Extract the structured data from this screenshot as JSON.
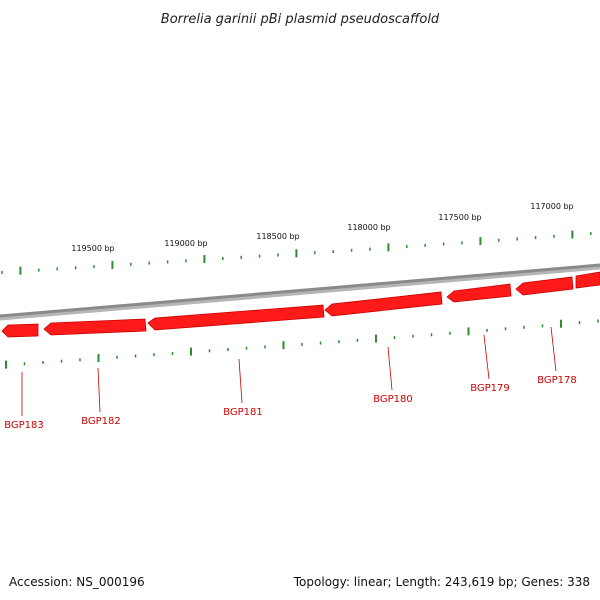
{
  "title": "Borrelia garinii pBi plasmid pseudoscaffold",
  "footer": {
    "accession": "Accession: NS_000196",
    "summary": "Topology: linear; Length: 243,619 bp; Genes: 338"
  },
  "colors": {
    "backbone": "#8a8a8a",
    "gene_fill": "#ff1a1a",
    "gene_dark": "#c80000",
    "gene_light": "#ff7a7a",
    "tick": "#2e8b2e",
    "label": "#cc0000",
    "leader": "#cc0000"
  },
  "scale": {
    "labels": [
      "119500 bp",
      "119000 bp",
      "118500 bp",
      "118000 bp",
      "117500 bp",
      "117000 bp"
    ]
  },
  "genes": [
    {
      "name": "BGP183",
      "strand": "reverse"
    },
    {
      "name": "BGP182",
      "strand": "reverse"
    },
    {
      "name": "BGP181",
      "strand": "reverse"
    },
    {
      "name": "BGP180",
      "strand": "reverse"
    },
    {
      "name": "BGP179",
      "strand": "reverse"
    },
    {
      "name": "BGP178",
      "strand": "reverse"
    }
  ]
}
